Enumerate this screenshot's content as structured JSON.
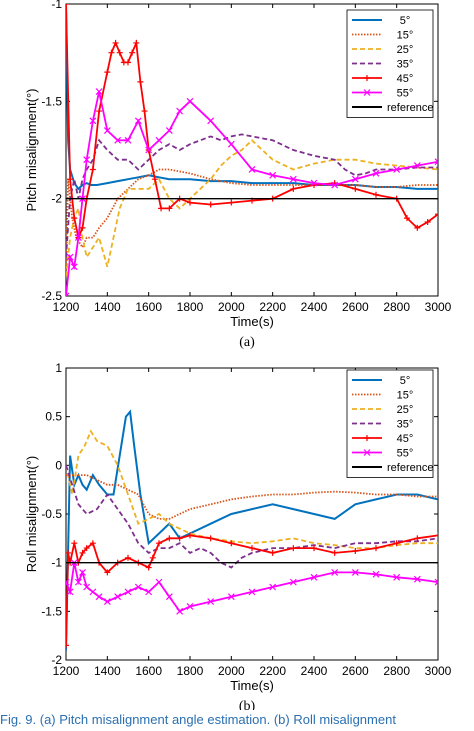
{
  "caption": "Fig. 9.  (a) Pitch misalignment angle estimation. (b) Roll misalignment",
  "chart_data": [
    {
      "type": "line",
      "panel_label": "(a)",
      "xlabel": "Time(s)",
      "ylabel": "Pitch misalignment(°)",
      "xlim": [
        1200,
        3000
      ],
      "ylim": [
        -2.5,
        -1
      ],
      "xticks": [
        "1200",
        "1400",
        "1600",
        "1800",
        "2000",
        "2200",
        "2400",
        "2600",
        "2800",
        "3000"
      ],
      "yticks": [
        "-2.5",
        "-2",
        "-1.5",
        "-1"
      ],
      "legend_position": "top-right",
      "grid": false,
      "series": [
        {
          "name": "5°",
          "color": "#0072BD",
          "style": "solid",
          "x": [
            1200,
            1210,
            1220,
            1240,
            1260,
            1280,
            1300,
            1320,
            1350,
            1400,
            1450,
            1500,
            1550,
            1600,
            1650,
            1700,
            1800,
            1900,
            2000,
            2100,
            2200,
            2300,
            2400,
            2500,
            2600,
            2700,
            2800,
            2900,
            3000
          ],
          "y": [
            -1.0,
            -1.7,
            -1.85,
            -1.92,
            -1.95,
            -1.93,
            -1.92,
            -1.93,
            -1.93,
            -1.92,
            -1.91,
            -1.9,
            -1.89,
            -1.88,
            -1.89,
            -1.9,
            -1.9,
            -1.91,
            -1.91,
            -1.92,
            -1.92,
            -1.92,
            -1.93,
            -1.93,
            -1.93,
            -1.94,
            -1.94,
            -1.95,
            -1.95
          ]
        },
        {
          "name": "15°",
          "color": "#D95319",
          "style": "dotted",
          "x": [
            1200,
            1210,
            1220,
            1230,
            1250,
            1280,
            1300,
            1330,
            1360,
            1400,
            1450,
            1500,
            1550,
            1600,
            1650,
            1700,
            1800,
            1900,
            2000,
            2100,
            2200,
            2300,
            2400,
            2500,
            2600,
            2700,
            2800,
            2900,
            3000
          ],
          "y": [
            -2.4,
            -1.9,
            -2.0,
            -2.1,
            -2.2,
            -2.25,
            -2.2,
            -2.2,
            -2.15,
            -2.1,
            -2.0,
            -1.95,
            -1.9,
            -1.88,
            -1.85,
            -1.85,
            -1.87,
            -1.9,
            -1.92,
            -1.93,
            -1.93,
            -1.93,
            -1.93,
            -1.93,
            -1.93,
            -1.94,
            -1.94,
            -1.93,
            -1.93
          ]
        },
        {
          "name": "25°",
          "color": "#EDB120",
          "style": "dashed",
          "x": [
            1200,
            1220,
            1240,
            1260,
            1280,
            1300,
            1330,
            1360,
            1400,
            1430,
            1460,
            1500,
            1550,
            1600,
            1650,
            1700,
            1750,
            1800,
            1850,
            1900,
            1950,
            2000,
            2050,
            2100,
            2150,
            2200,
            2300,
            2400,
            2500,
            2600,
            2700,
            2800,
            2900,
            3000
          ],
          "y": [
            -2.4,
            -2.2,
            -2.1,
            -2.05,
            -2.2,
            -2.3,
            -2.25,
            -2.2,
            -2.35,
            -2.2,
            -2.05,
            -1.95,
            -1.95,
            -1.95,
            -1.9,
            -2.0,
            -2.05,
            -2.0,
            -1.95,
            -1.9,
            -1.83,
            -1.78,
            -1.75,
            -1.7,
            -1.75,
            -1.8,
            -1.85,
            -1.82,
            -1.8,
            -1.8,
            -1.82,
            -1.83,
            -1.84,
            -1.85
          ]
        },
        {
          "name": "35°",
          "color": "#7E2F8E",
          "style": "dashed",
          "x": [
            1200,
            1220,
            1240,
            1260,
            1280,
            1300,
            1330,
            1360,
            1400,
            1450,
            1500,
            1550,
            1600,
            1650,
            1700,
            1750,
            1800,
            1850,
            1900,
            1950,
            2000,
            2050,
            2100,
            2200,
            2300,
            2400,
            2500,
            2550,
            2600,
            2650,
            2700,
            2800,
            2900,
            3000
          ],
          "y": [
            -2.3,
            -2.0,
            -1.9,
            -2.0,
            -1.9,
            -1.85,
            -1.8,
            -1.7,
            -1.75,
            -1.8,
            -1.8,
            -1.85,
            -1.8,
            -1.75,
            -1.72,
            -1.75,
            -1.72,
            -1.7,
            -1.68,
            -1.7,
            -1.68,
            -1.67,
            -1.68,
            -1.7,
            -1.75,
            -1.78,
            -1.8,
            -1.85,
            -1.88,
            -1.87,
            -1.85,
            -1.85,
            -1.84,
            -1.84
          ]
        },
        {
          "name": "45°",
          "color": "#FF0000",
          "style": "plus",
          "x": [
            1200,
            1220,
            1240,
            1260,
            1280,
            1300,
            1330,
            1360,
            1400,
            1420,
            1440,
            1460,
            1480,
            1500,
            1520,
            1540,
            1560,
            1580,
            1600,
            1630,
            1660,
            1700,
            1750,
            1800,
            1900,
            2000,
            2100,
            2200,
            2300,
            2400,
            2500,
            2600,
            2700,
            2800,
            2850,
            2900,
            2950,
            3000
          ],
          "y": [
            -1.0,
            -1.9,
            -2.1,
            -2.2,
            -2.15,
            -2.0,
            -1.85,
            -1.55,
            -1.35,
            -1.25,
            -1.2,
            -1.25,
            -1.3,
            -1.3,
            -1.25,
            -1.2,
            -1.4,
            -1.55,
            -1.75,
            -1.9,
            -2.05,
            -2.05,
            -2.0,
            -2.02,
            -2.03,
            -2.02,
            -2.01,
            -2.0,
            -1.95,
            -1.93,
            -1.92,
            -1.95,
            -1.98,
            -2.0,
            -2.1,
            -2.15,
            -2.12,
            -2.08
          ]
        },
        {
          "name": "55°",
          "color": "#FF00FF",
          "style": "cross",
          "x": [
            1200,
            1220,
            1240,
            1260,
            1280,
            1300,
            1330,
            1360,
            1400,
            1450,
            1500,
            1550,
            1600,
            1650,
            1700,
            1750,
            1800,
            1900,
            2000,
            2100,
            2200,
            2300,
            2400,
            2500,
            2600,
            2700,
            2800,
            2900,
            3000
          ],
          "y": [
            -2.5,
            -2.3,
            -2.35,
            -2.2,
            -2.0,
            -1.8,
            -1.6,
            -1.45,
            -1.65,
            -1.7,
            -1.7,
            -1.6,
            -1.75,
            -1.7,
            -1.65,
            -1.55,
            -1.5,
            -1.6,
            -1.72,
            -1.85,
            -1.88,
            -1.9,
            -1.92,
            -1.93,
            -1.9,
            -1.87,
            -1.85,
            -1.83,
            -1.81
          ]
        },
        {
          "name": "reference",
          "color": "#000000",
          "style": "solid",
          "x": [
            1200,
            3000
          ],
          "y": [
            -2,
            -2
          ]
        }
      ]
    },
    {
      "type": "line",
      "panel_label": "(b)",
      "xlabel": "Time(s)",
      "ylabel": "Roll misalignment(°)",
      "xlim": [
        1200,
        3000
      ],
      "ylim": [
        -2,
        1
      ],
      "xticks": [
        "1200",
        "1400",
        "1600",
        "1800",
        "2000",
        "2200",
        "2400",
        "2600",
        "2800",
        "3000"
      ],
      "yticks": [
        "-2",
        "-1.5",
        "-1",
        "-0.5",
        "0",
        "0.5",
        "1"
      ],
      "legend_position": "top-right",
      "grid": false,
      "series": [
        {
          "name": "5°",
          "color": "#0072BD",
          "style": "solid",
          "x": [
            1200,
            1220,
            1240,
            1260,
            1280,
            1300,
            1330,
            1360,
            1400,
            1430,
            1460,
            1490,
            1510,
            1530,
            1560,
            1600,
            1650,
            1700,
            1750,
            1800,
            1900,
            2000,
            2100,
            2200,
            2300,
            2400,
            2500,
            2600,
            2700,
            2800,
            2900,
            3000
          ],
          "y": [
            -1.9,
            0.1,
            -0.2,
            -0.1,
            -0.2,
            -0.25,
            -0.1,
            -0.2,
            -0.3,
            -0.3,
            0.1,
            0.5,
            0.55,
            0.2,
            -0.3,
            -0.8,
            -0.7,
            -0.6,
            -0.75,
            -0.7,
            -0.6,
            -0.5,
            -0.45,
            -0.4,
            -0.45,
            -0.5,
            -0.55,
            -0.4,
            -0.35,
            -0.3,
            -0.3,
            -0.35
          ]
        },
        {
          "name": "15°",
          "color": "#D95319",
          "style": "dotted",
          "x": [
            1200,
            1250,
            1300,
            1350,
            1400,
            1450,
            1500,
            1550,
            1600,
            1650,
            1700,
            1800,
            1900,
            2000,
            2100,
            2200,
            2300,
            2400,
            2500,
            2600,
            2700,
            2800,
            2900,
            3000
          ],
          "y": [
            -0.1,
            -0.1,
            -0.1,
            -0.15,
            -0.2,
            -0.2,
            -0.25,
            -0.3,
            -0.5,
            -0.55,
            -0.55,
            -0.45,
            -0.4,
            -0.35,
            -0.32,
            -0.3,
            -0.3,
            -0.28,
            -0.27,
            -0.28,
            -0.3,
            -0.3,
            -0.32,
            -0.32
          ]
        },
        {
          "name": "25°",
          "color": "#EDB120",
          "style": "dashed",
          "x": [
            1200,
            1230,
            1260,
            1290,
            1320,
            1350,
            1400,
            1450,
            1500,
            1550,
            1600,
            1650,
            1700,
            1800,
            1900,
            2000,
            2100,
            2200,
            2300,
            2400,
            2500,
            2600,
            2700,
            2800,
            2900,
            3000
          ],
          "y": [
            0.0,
            -0.3,
            0.1,
            0.2,
            0.35,
            0.25,
            0.2,
            0.0,
            -0.3,
            -0.6,
            -0.55,
            -0.5,
            -0.6,
            -0.7,
            -0.75,
            -0.78,
            -0.8,
            -0.78,
            -0.75,
            -0.8,
            -0.82,
            -0.85,
            -0.85,
            -0.82,
            -0.8,
            -0.8
          ]
        },
        {
          "name": "35°",
          "color": "#7E2F8E",
          "style": "dashed",
          "x": [
            1200,
            1230,
            1260,
            1300,
            1350,
            1400,
            1450,
            1500,
            1550,
            1600,
            1650,
            1700,
            1750,
            1800,
            1850,
            1900,
            1950,
            2000,
            2050,
            2100,
            2200,
            2300,
            2400,
            2500,
            2600,
            2700,
            2800,
            2900,
            3000
          ],
          "y": [
            0.0,
            -0.2,
            -0.4,
            -0.5,
            -0.45,
            -0.3,
            -0.45,
            -0.6,
            -0.8,
            -0.9,
            -0.85,
            -0.85,
            -0.8,
            -0.9,
            -0.85,
            -0.9,
            -1.0,
            -1.05,
            -0.95,
            -0.9,
            -0.85,
            -0.85,
            -0.82,
            -0.85,
            -0.8,
            -0.8,
            -0.78,
            -0.78,
            -0.75
          ]
        },
        {
          "name": "45°",
          "color": "#FF0000",
          "style": "plus",
          "x": [
            1200,
            1210,
            1220,
            1240,
            1260,
            1280,
            1300,
            1330,
            1360,
            1400,
            1450,
            1500,
            1550,
            1600,
            1620,
            1650,
            1700,
            1750,
            1800,
            1900,
            2000,
            2100,
            2200,
            2300,
            2400,
            2500,
            2600,
            2700,
            2800,
            2900,
            3000
          ],
          "y": [
            -1.85,
            -0.9,
            -1.0,
            -0.8,
            -1.0,
            -0.9,
            -0.85,
            -0.8,
            -1.0,
            -1.1,
            -1.0,
            -0.95,
            -1.0,
            -1.05,
            -0.95,
            -0.8,
            -0.75,
            -0.75,
            -0.72,
            -0.75,
            -0.8,
            -0.85,
            -0.9,
            -0.85,
            -0.85,
            -0.9,
            -0.88,
            -0.85,
            -0.8,
            -0.75,
            -0.72
          ]
        },
        {
          "name": "55°",
          "color": "#FF00FF",
          "style": "cross",
          "x": [
            1200,
            1220,
            1240,
            1260,
            1280,
            1300,
            1330,
            1360,
            1400,
            1450,
            1500,
            1550,
            1600,
            1650,
            1700,
            1750,
            1800,
            1900,
            2000,
            2100,
            2200,
            2300,
            2400,
            2500,
            2600,
            2700,
            2800,
            2900,
            3000
          ],
          "y": [
            -1.2,
            -1.3,
            -1.0,
            -1.2,
            -1.1,
            -1.25,
            -1.3,
            -1.35,
            -1.4,
            -1.35,
            -1.3,
            -1.25,
            -1.3,
            -1.2,
            -1.35,
            -1.5,
            -1.45,
            -1.4,
            -1.35,
            -1.3,
            -1.25,
            -1.2,
            -1.15,
            -1.1,
            -1.1,
            -1.12,
            -1.15,
            -1.17,
            -1.2
          ]
        },
        {
          "name": "reference",
          "color": "#000000",
          "style": "solid",
          "x": [
            1200,
            3000
          ],
          "y": [
            -1,
            -1
          ]
        }
      ]
    }
  ]
}
